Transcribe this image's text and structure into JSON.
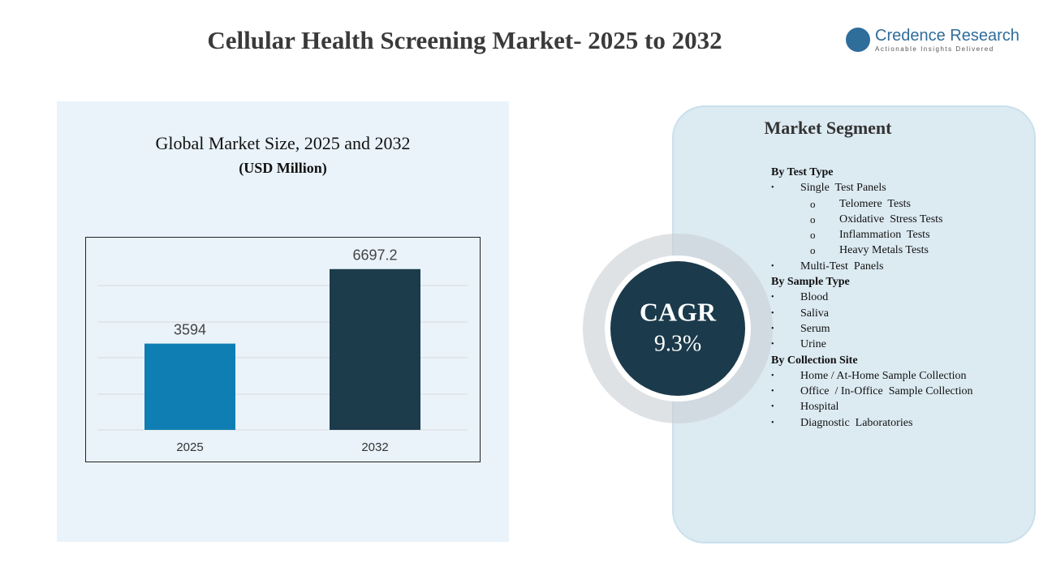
{
  "title": "Cellular Health Screening Market- 2025 to 2032",
  "logo": {
    "name": "Credence Research",
    "tagline": "Actionable Insights Delivered"
  },
  "chart_data": {
    "type": "bar",
    "title": "Global Market Size, 2025 and 2032",
    "subtitle": "(USD Million)",
    "categories": [
      "2025",
      "2032"
    ],
    "values": [
      3594,
      6697.2
    ],
    "colors": [
      "#0f7fb3",
      "#1c3b4b"
    ],
    "ylim": [
      0,
      7500
    ]
  },
  "cagr": {
    "label": "CAGR",
    "value": "9.3%"
  },
  "segment": {
    "title": "Market Segment",
    "groups": [
      {
        "heading": "By Test Type",
        "items": [
          {
            "text": "Single  Test Panels",
            "sub": [
              "Telomere  Tests",
              "Oxidative  Stress Tests",
              "Inflammation  Tests",
              "Heavy Metals Tests"
            ]
          },
          {
            "text": "Multi-Test  Panels"
          }
        ]
      },
      {
        "heading": "By Sample Type",
        "items": [
          {
            "text": "Blood"
          },
          {
            "text": "Saliva"
          },
          {
            "text": "Serum"
          },
          {
            "text": "Urine"
          }
        ]
      },
      {
        "heading": "By Collection Site",
        "items": [
          {
            "text": "Home / At-Home Sample Collection"
          },
          {
            "text": "Office  / In-Office  Sample Collection"
          },
          {
            "text": "Hospital"
          },
          {
            "text": "Diagnostic  Laboratories"
          }
        ]
      }
    ]
  }
}
